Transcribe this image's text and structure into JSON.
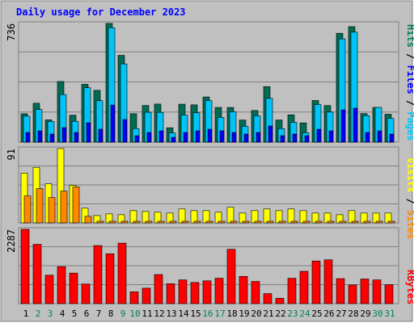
{
  "chart_data": [
    {
      "type": "bar",
      "panel": "hits-files-pages",
      "title": "Daily usage for December 2023",
      "ytick": "736",
      "categories": [
        "1",
        "2",
        "3",
        "4",
        "5",
        "6",
        "7",
        "8",
        "9",
        "10",
        "11",
        "12",
        "13",
        "14",
        "15",
        "16",
        "17",
        "18",
        "19",
        "20",
        "21",
        "22",
        "23",
        "24",
        "25",
        "26",
        "27",
        "28",
        "29",
        "30",
        "31"
      ],
      "series": [
        {
          "name": "Hits",
          "color": "#006c54",
          "values": [
            176,
            241,
            138,
            376,
            167,
            359,
            321,
            736,
            538,
            176,
            227,
            236,
            89,
            235,
            231,
            280,
            215,
            215,
            137,
            196,
            344,
            137,
            169,
            119,
            258,
            227,
            675,
            716,
            177,
            215,
            173
          ]
        },
        {
          "name": "Files",
          "color": "#00c4f8",
          "values": [
            161,
            202,
            128,
            295,
            129,
            337,
            257,
            709,
            485,
            84,
            185,
            184,
            57,
            168,
            182,
            258,
            153,
            188,
            98,
            163,
            271,
            84,
            123,
            58,
            233,
            186,
            640,
            682,
            164,
            215,
            147
          ]
        },
        {
          "name": "Pages",
          "color": "#0000fa",
          "values": [
            60,
            70,
            50,
            90,
            60,
            120,
            80,
            230,
            140,
            40,
            60,
            70,
            30,
            60,
            70,
            80,
            70,
            60,
            50,
            60,
            100,
            40,
            50,
            40,
            80,
            70,
            200,
            210,
            60,
            70,
            50
          ]
        }
      ],
      "axis_labels": {
        "hits": "Hits",
        "files": "Files",
        "pages": "Pages",
        "sep": " / "
      },
      "ylim": [
        0,
        736
      ]
    },
    {
      "type": "bar",
      "panel": "visits-sites",
      "ytick": "91",
      "categories": [
        "1",
        "2",
        "3",
        "4",
        "5",
        "6",
        "7",
        "8",
        "9",
        "10",
        "11",
        "12",
        "13",
        "14",
        "15",
        "16",
        "17",
        "18",
        "19",
        "20",
        "21",
        "22",
        "23",
        "24",
        "25",
        "26",
        "27",
        "28",
        "29",
        "30",
        "31"
      ],
      "series": [
        {
          "name": "Visits",
          "color": "#ffff00",
          "values": [
            61,
            68,
            48,
            91,
            46,
            18,
            9,
            11,
            10,
            15,
            14,
            13,
            12,
            17,
            15,
            15,
            13,
            19,
            12,
            15,
            17,
            15,
            17,
            15,
            12,
            12,
            10,
            15,
            12,
            12,
            12
          ]
        },
        {
          "name": "Sites",
          "color": "#ff8800",
          "values": [
            33,
            42,
            31,
            39,
            44,
            8,
            2,
            2,
            2,
            2,
            2,
            2,
            2,
            2,
            2,
            2,
            2,
            2,
            2,
            2,
            2,
            2,
            2,
            2,
            2,
            2,
            2,
            2,
            2,
            2,
            2
          ]
        }
      ],
      "axis_labels": {
        "visits": "Visits",
        "sites": "Sites",
        "sep": " / "
      },
      "ylim": [
        0,
        91
      ]
    },
    {
      "type": "bar",
      "panel": "kbytes",
      "ytick": "2287",
      "categories": [
        "1",
        "2",
        "3",
        "4",
        "5",
        "6",
        "7",
        "8",
        "9",
        "10",
        "11",
        "12",
        "13",
        "14",
        "15",
        "16",
        "17",
        "18",
        "19",
        "20",
        "21",
        "22",
        "23",
        "24",
        "25",
        "26",
        "27",
        "28",
        "29",
        "30",
        "31"
      ],
      "series": [
        {
          "name": "KBytes",
          "color": "#ff0000",
          "values": [
            2287,
            1826,
            874,
            1138,
            940,
            603,
            1787,
            1535,
            1862,
            363,
            475,
            895,
            612,
            730,
            651,
            701,
            781,
            1672,
            838,
            683,
            308,
            164,
            781,
            996,
            1312,
            1348,
            770,
            574,
            758,
            730,
            583
          ]
        }
      ],
      "axis_labels": {
        "kbytes": "KBytes"
      },
      "ylim": [
        0,
        2287
      ]
    }
  ],
  "x_axis": {
    "labels": [
      "1",
      "2",
      "3",
      "4",
      "5",
      "6",
      "7",
      "8",
      "9",
      "10",
      "11",
      "12",
      "13",
      "14",
      "15",
      "16",
      "17",
      "18",
      "19",
      "20",
      "21",
      "22",
      "23",
      "24",
      "25",
      "26",
      "27",
      "28",
      "29",
      "30",
      "31"
    ],
    "weekend": [
      false,
      true,
      true,
      false,
      false,
      false,
      false,
      false,
      true,
      true,
      false,
      false,
      false,
      false,
      false,
      true,
      true,
      false,
      false,
      false,
      false,
      false,
      true,
      true,
      false,
      false,
      false,
      false,
      false,
      true,
      true
    ]
  },
  "colors": {
    "background": "#c0c0c0",
    "frame": "#ffffff",
    "title": "#0000ff",
    "grid": "#808080",
    "axis_label": "#000000",
    "weekday_label": "#000000",
    "weekend_label": "#00805c",
    "hits_text": "#00805c",
    "files_text": "#0000ff",
    "pages_text": "#00c4f8",
    "visits_text": "#ffff00",
    "sites_text": "#ff8800",
    "kbytes_text": "#ff0000"
  }
}
